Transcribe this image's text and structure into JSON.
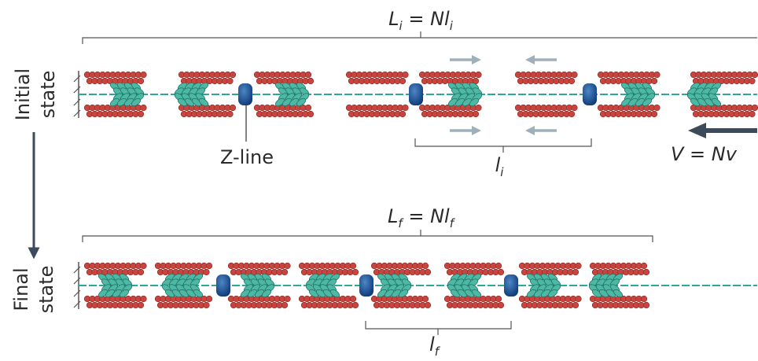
{
  "initial": {
    "state_label": [
      "Initial",
      "state"
    ],
    "length_label": [
      "L",
      "i",
      " = ",
      "N",
      "l",
      "i"
    ],
    "z_line_label": "Z-line",
    "sarcomere_label": [
      "l",
      "i"
    ],
    "velocity_label": "V = Nv"
  },
  "final": {
    "state_label": [
      "Final",
      "state"
    ],
    "length_label": [
      "L",
      "f",
      " = ",
      "N",
      "l",
      "f"
    ],
    "sarcomere_label": [
      "l",
      "f"
    ]
  }
}
